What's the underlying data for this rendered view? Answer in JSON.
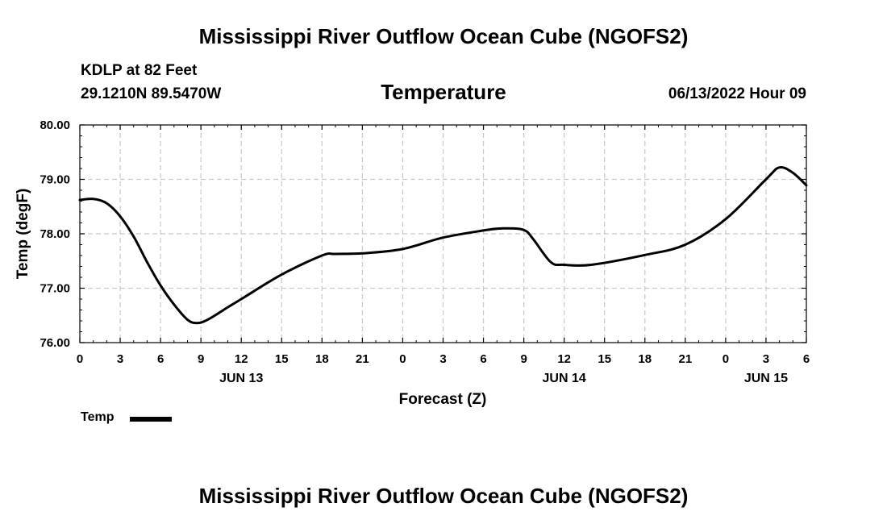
{
  "page": {
    "title": "Mississippi River Outflow Ocean Cube (NGOFS2)",
    "footer_title": "Mississippi River Outflow Ocean Cube (NGOFS2)"
  },
  "header": {
    "station": "KDLP at 82 Feet",
    "coords": "29.1210N  89.5470W",
    "run": "06/13/2022 Hour 09"
  },
  "legend": {
    "label": "Temp"
  },
  "chart_data": {
    "type": "line",
    "title": "Temperature",
    "xlabel": "Forecast (Z)",
    "ylabel": "Temp (degF)",
    "xlim": [
      0,
      54
    ],
    "ylim": [
      76.0,
      80.0
    ],
    "grid": true,
    "x_ticks": [
      0,
      3,
      6,
      9,
      12,
      15,
      18,
      21,
      24,
      27,
      30,
      33,
      36,
      39,
      42,
      45,
      48,
      51,
      54
    ],
    "x_tick_labels": [
      "0",
      "3",
      "6",
      "9",
      "12",
      "15",
      "18",
      "21",
      "0",
      "3",
      "6",
      "9",
      "12",
      "15",
      "18",
      "21",
      "0",
      "3",
      "6"
    ],
    "date_labels": [
      {
        "x": 12,
        "label": "JUN 13"
      },
      {
        "x": 36,
        "label": "JUN 14"
      },
      {
        "x": 51,
        "label": "JUN 15"
      }
    ],
    "y_ticks": [
      76.0,
      77.0,
      78.0,
      79.0,
      80.0
    ],
    "y_tick_labels": [
      "76.00",
      "77.00",
      "78.00",
      "79.00",
      "80.00"
    ],
    "series": [
      {
        "name": "Temp",
        "color": "#000000",
        "x": [
          0,
          1,
          2,
          3,
          4,
          5,
          6,
          7,
          8,
          8.7,
          9.5,
          11,
          12,
          15,
          18,
          19,
          21,
          24,
          27,
          30,
          31.5,
          33,
          33.7,
          35,
          36,
          38,
          42,
          45,
          48,
          51,
          52,
          53,
          54
        ],
        "y": [
          78.62,
          78.64,
          78.56,
          78.32,
          77.95,
          77.48,
          77.05,
          76.7,
          76.42,
          76.36,
          76.42,
          76.65,
          76.8,
          77.25,
          77.6,
          77.63,
          77.64,
          77.72,
          77.93,
          78.06,
          78.1,
          78.07,
          77.9,
          77.48,
          77.43,
          77.43,
          77.61,
          77.8,
          78.27,
          79.0,
          79.22,
          79.12,
          78.89
        ]
      }
    ]
  }
}
